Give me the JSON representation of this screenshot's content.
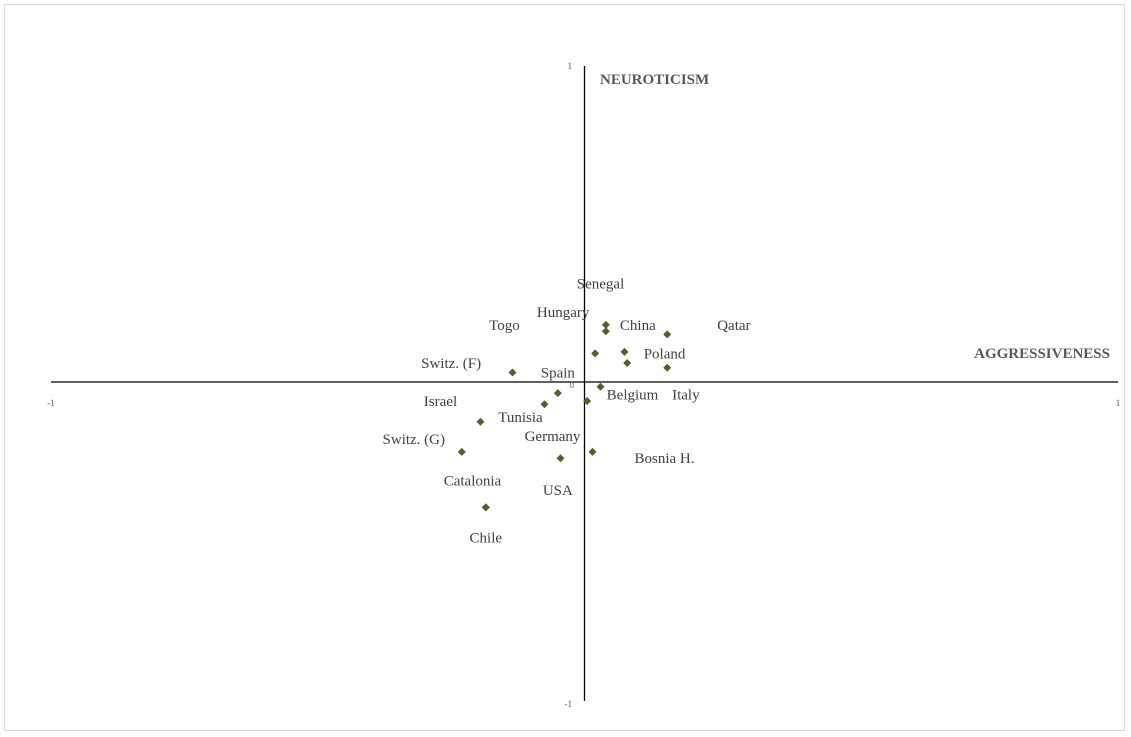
{
  "chart_data": {
    "type": "scatter",
    "title": "",
    "xlabel": "AGGRESSIVENESS",
    "ylabel": "NEUROTICISM",
    "xlim": [
      -1,
      1
    ],
    "ylim": [
      -1,
      1
    ],
    "grid": false,
    "legend": "none",
    "ticks": {
      "x_min": "-1",
      "x_max": "1",
      "y_min": "-1",
      "y_max": "1",
      "origin": "0"
    },
    "marker_color": "#4f6228",
    "points": [
      {
        "label": "Senegal",
        "x": 0.04,
        "y": 0.18,
        "label_x": 0.03,
        "label_y": 0.31
      },
      {
        "label": "Hungary",
        "x": 0.04,
        "y": 0.16,
        "label_x": -0.04,
        "label_y": 0.22
      },
      {
        "label": "China",
        "x": 0.02,
        "y": 0.09,
        "label_x": 0.1,
        "label_y": 0.18
      },
      {
        "label": "Togo",
        "x": 0.08,
        "y": 0.06,
        "label_x": -0.15,
        "label_y": 0.18
      },
      {
        "label": "Qatar",
        "x": 0.155,
        "y": 0.15,
        "label_x": 0.28,
        "label_y": 0.18
      },
      {
        "label": "Poland",
        "x": 0.075,
        "y": 0.095,
        "label_x": 0.15,
        "label_y": 0.09
      },
      {
        "label": "Italy",
        "x": 0.155,
        "y": 0.045,
        "label_x": 0.19,
        "label_y": -0.04
      },
      {
        "label": "Switz. (F)",
        "x": -0.135,
        "y": 0.03,
        "label_x": -0.25,
        "label_y": 0.06
      },
      {
        "label": "Spain",
        "x": -0.05,
        "y": -0.035,
        "label_x": -0.05,
        "label_y": 0.03
      },
      {
        "label": "Belgium",
        "x": 0.03,
        "y": -0.015,
        "label_x": 0.09,
        "label_y": -0.04
      },
      {
        "label": "Israel",
        "x": -0.195,
        "y": -0.125,
        "label_x": -0.27,
        "label_y": -0.06
      },
      {
        "label": "Tunisia",
        "x": -0.075,
        "y": -0.07,
        "label_x": -0.12,
        "label_y": -0.11
      },
      {
        "label": "Switz. (G)",
        "x": -0.23,
        "y": -0.22,
        "label_x": -0.32,
        "label_y": -0.18
      },
      {
        "label": "Germany",
        "x": 0.005,
        "y": -0.06,
        "label_x": -0.06,
        "label_y": -0.17
      },
      {
        "label": "Bosnia  H.",
        "x": 0.015,
        "y": -0.22,
        "label_x": 0.15,
        "label_y": -0.24
      },
      {
        "label": "USA",
        "x": -0.045,
        "y": -0.24,
        "label_x": -0.05,
        "label_y": -0.34
      },
      {
        "label": "Catalonia",
        "x": -0.185,
        "y": -0.395,
        "label_x": -0.21,
        "label_y": -0.31
      },
      {
        "label": "Chile",
        "x": -0.185,
        "y": -0.395,
        "label_x": -0.185,
        "label_y": -0.49
      }
    ]
  }
}
